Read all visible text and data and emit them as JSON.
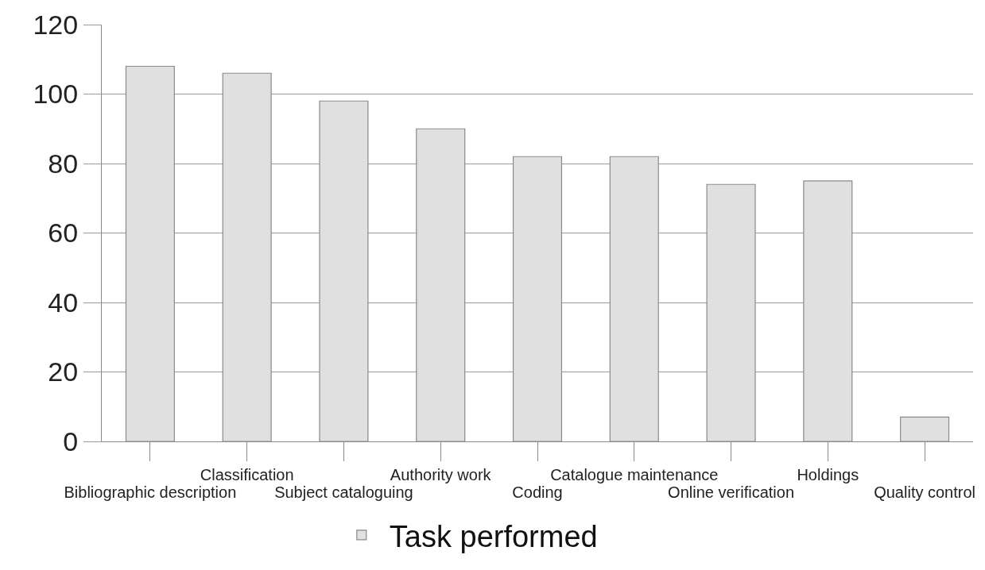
{
  "chart_data": {
    "type": "bar",
    "categories": [
      "Bibliographic description",
      "Classification",
      "Subject cataloguing",
      "Authority work",
      "Coding",
      "Catalogue maintenance",
      "Online verification",
      "Holdings",
      "Quality control"
    ],
    "series": [
      {
        "name": "Task performed",
        "color": "#e0e0e0",
        "values": [
          108,
          106,
          98,
          90,
          82,
          82,
          74,
          75,
          7
        ]
      }
    ],
    "ylim": [
      0,
      120
    ],
    "yticks": [
      0,
      20,
      40,
      60,
      80,
      100,
      120
    ],
    "grid": "y",
    "legend": "bottom"
  }
}
